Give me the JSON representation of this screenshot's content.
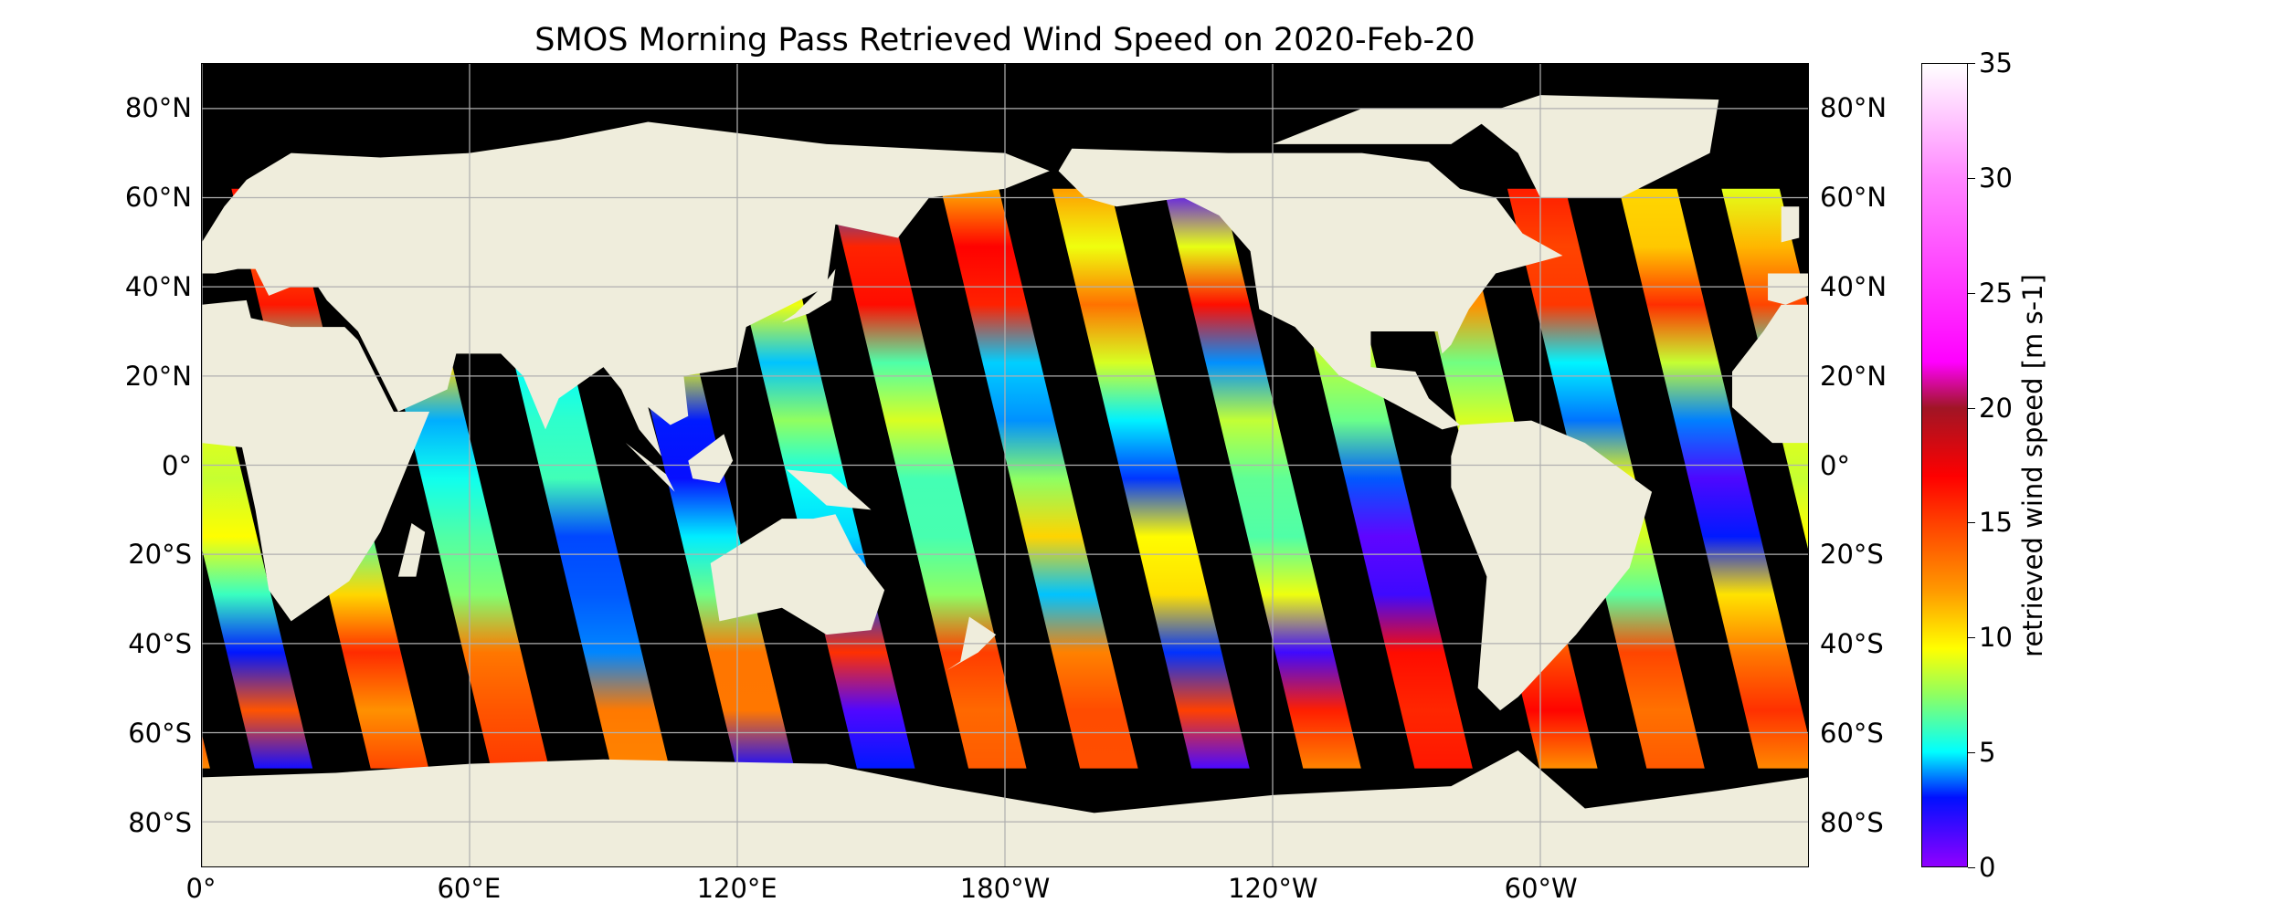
{
  "title": "SMOS Morning Pass Retrieved Wind Speed on 2020-Feb-20",
  "map": {
    "projection": "PlateCarree",
    "lon_range": [
      0,
      360
    ],
    "lat_range": [
      -90,
      90
    ],
    "grid": true,
    "ocean_color": "#000000",
    "land_color": "#efeddc",
    "grid_color": "#b0b0b0",
    "lat_ticks": [
      {
        "value": 80,
        "label": "80°N"
      },
      {
        "value": 60,
        "label": "60°N"
      },
      {
        "value": 40,
        "label": "40°N"
      },
      {
        "value": 20,
        "label": "20°N"
      },
      {
        "value": 0,
        "label": "0°"
      },
      {
        "value": -20,
        "label": "20°S"
      },
      {
        "value": -40,
        "label": "40°S"
      },
      {
        "value": -60,
        "label": "60°S"
      },
      {
        "value": -80,
        "label": "80°S"
      }
    ],
    "lon_ticks": [
      {
        "value": 0,
        "label": "0°"
      },
      {
        "value": 60,
        "label": "60°E"
      },
      {
        "value": 120,
        "label": "120°E"
      },
      {
        "value": 180,
        "label": "180°W"
      },
      {
        "value": 240,
        "label": "120°W"
      },
      {
        "value": 300,
        "label": "60°W"
      }
    ]
  },
  "colorbar": {
    "label": "retrieved wind speed [m s-1]",
    "range": [
      0,
      35
    ],
    "ticks": [
      "0",
      "5",
      "10",
      "15",
      "20",
      "25",
      "30",
      "35"
    ],
    "colormap": [
      {
        "v": 0,
        "c": "#9000ff"
      },
      {
        "v": 3,
        "c": "#0010ff"
      },
      {
        "v": 5,
        "c": "#00ffff"
      },
      {
        "v": 7.5,
        "c": "#90ff60"
      },
      {
        "v": 9.5,
        "c": "#ffff00"
      },
      {
        "v": 12,
        "c": "#ff9a00"
      },
      {
        "v": 15,
        "c": "#ff4000"
      },
      {
        "v": 17,
        "c": "#ff0000"
      },
      {
        "v": 20,
        "c": "#a01525"
      },
      {
        "v": 22,
        "c": "#ff00ff"
      },
      {
        "v": 30,
        "c": "#ff88ff"
      },
      {
        "v": 35,
        "c": "#ffffff"
      }
    ]
  }
}
